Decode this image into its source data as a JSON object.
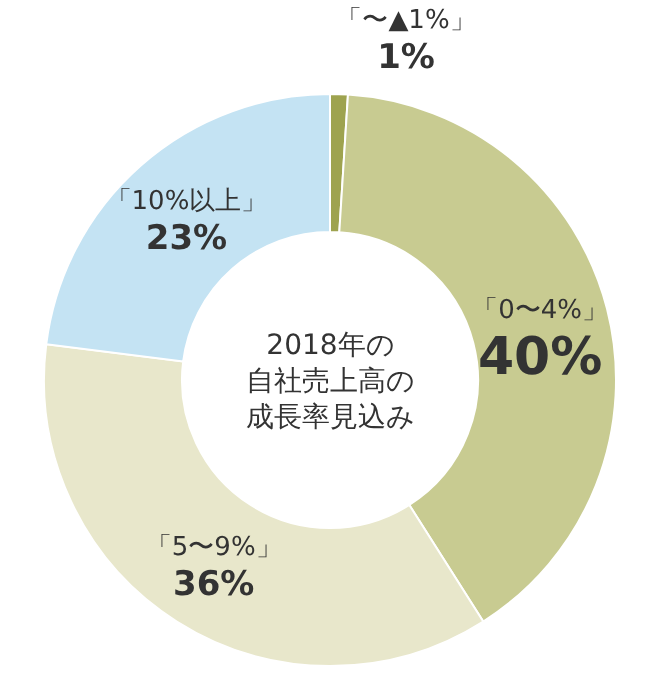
{
  "chart_data": {
    "type": "donut",
    "title": "2018年の自社売上高の成長率見込み",
    "categories": [
      "「〜▲1%」",
      "「0〜4%」",
      "「5〜9%」",
      "「10%以上」"
    ],
    "values": [
      1,
      40,
      36,
      23
    ],
    "value_labels": [
      "1%",
      "40%",
      "36%",
      "23%"
    ],
    "colors": [
      "#9ea34f",
      "#c8cb91",
      "#e8e7cb",
      "#c4e3f3"
    ]
  }
}
